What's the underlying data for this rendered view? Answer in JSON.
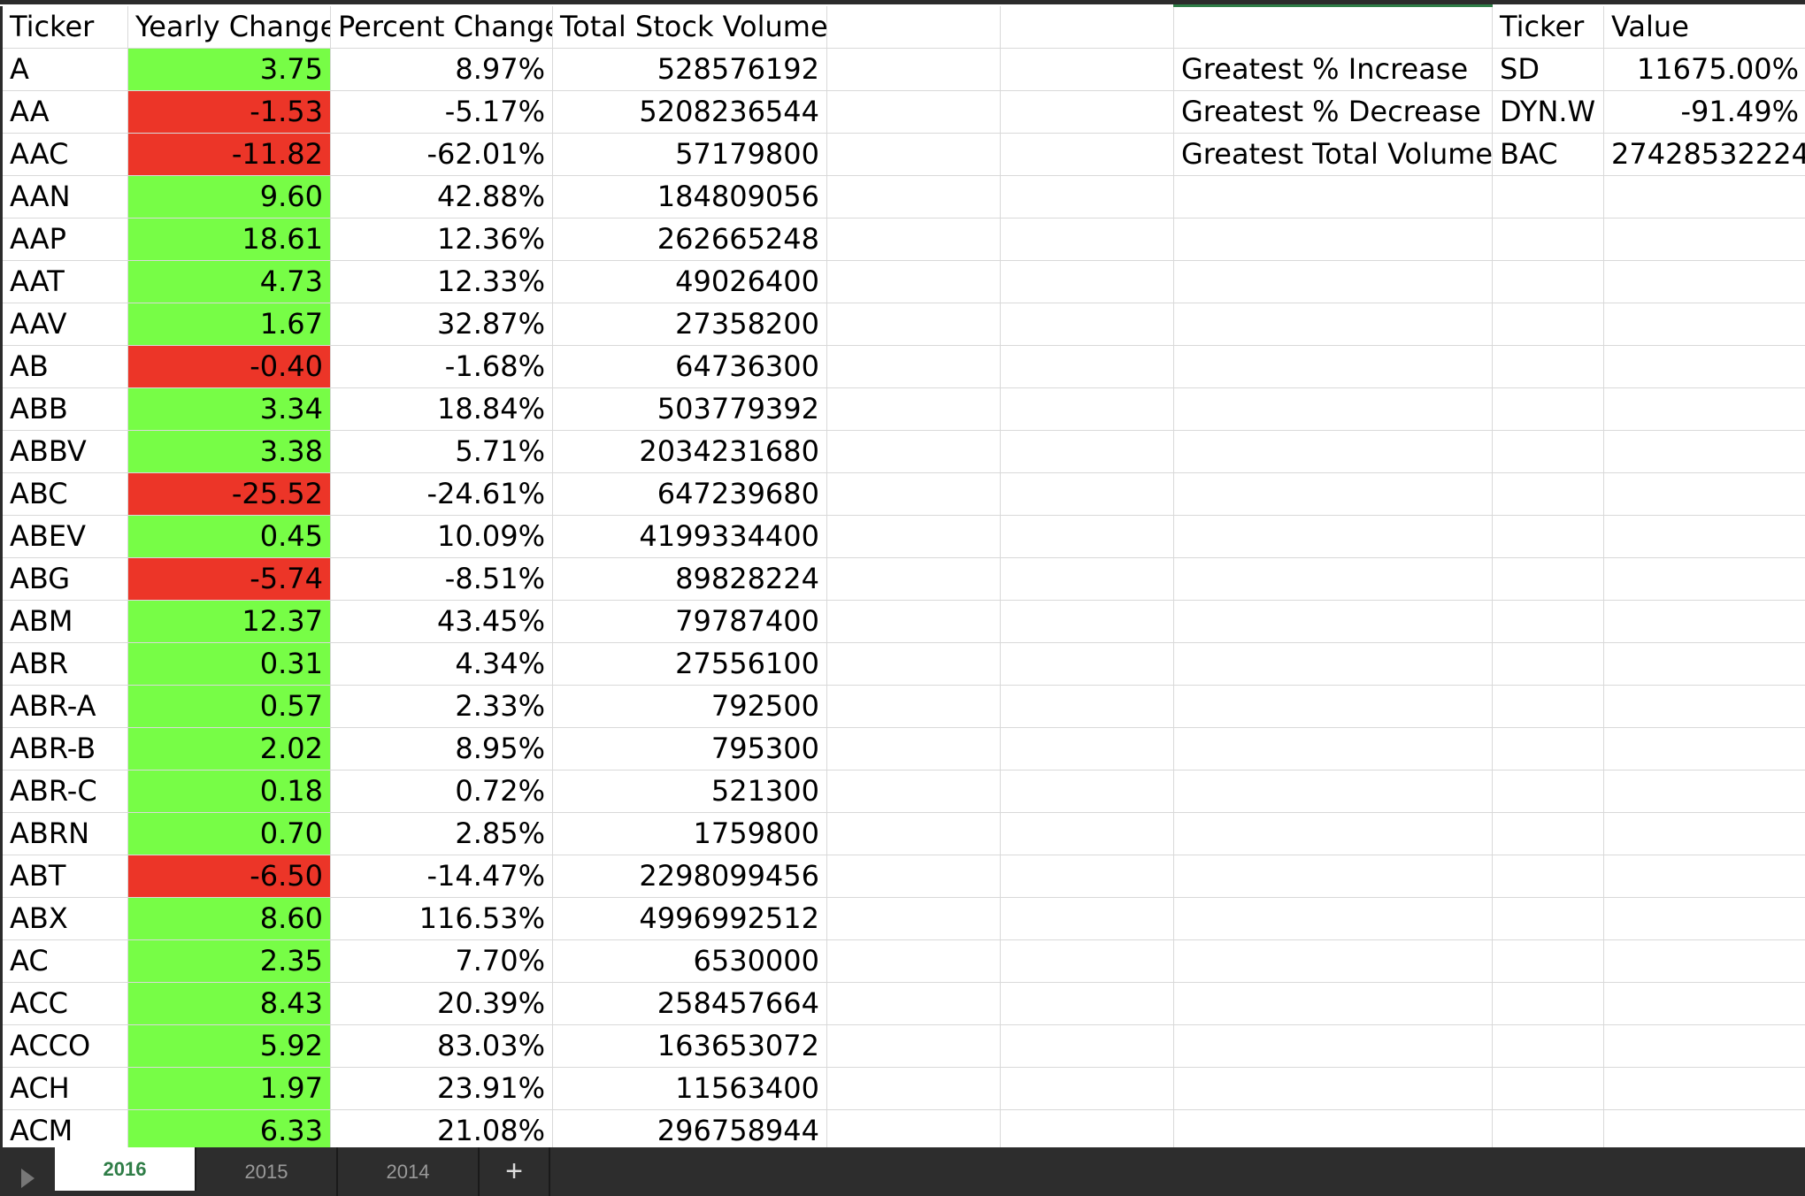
{
  "headers": [
    "Ticker",
    "Yearly Change",
    "Percent Change",
    "Total Stock Volume"
  ],
  "rows": [
    {
      "ticker": "A",
      "change": "3.75",
      "percent": "8.97%",
      "volume": "528576192",
      "dir": "pos"
    },
    {
      "ticker": "AA",
      "change": "-1.53",
      "percent": "-5.17%",
      "volume": "5208236544",
      "dir": "neg"
    },
    {
      "ticker": "AAC",
      "change": "-11.82",
      "percent": "-62.01%",
      "volume": "57179800",
      "dir": "neg"
    },
    {
      "ticker": "AAN",
      "change": "9.60",
      "percent": "42.88%",
      "volume": "184809056",
      "dir": "pos"
    },
    {
      "ticker": "AAP",
      "change": "18.61",
      "percent": "12.36%",
      "volume": "262665248",
      "dir": "pos"
    },
    {
      "ticker": "AAT",
      "change": "4.73",
      "percent": "12.33%",
      "volume": "49026400",
      "dir": "pos"
    },
    {
      "ticker": "AAV",
      "change": "1.67",
      "percent": "32.87%",
      "volume": "27358200",
      "dir": "pos"
    },
    {
      "ticker": "AB",
      "change": "-0.40",
      "percent": "-1.68%",
      "volume": "64736300",
      "dir": "neg"
    },
    {
      "ticker": "ABB",
      "change": "3.34",
      "percent": "18.84%",
      "volume": "503779392",
      "dir": "pos"
    },
    {
      "ticker": "ABBV",
      "change": "3.38",
      "percent": "5.71%",
      "volume": "2034231680",
      "dir": "pos"
    },
    {
      "ticker": "ABC",
      "change": "-25.52",
      "percent": "-24.61%",
      "volume": "647239680",
      "dir": "neg"
    },
    {
      "ticker": "ABEV",
      "change": "0.45",
      "percent": "10.09%",
      "volume": "4199334400",
      "dir": "pos"
    },
    {
      "ticker": "ABG",
      "change": "-5.74",
      "percent": "-8.51%",
      "volume": "89828224",
      "dir": "neg"
    },
    {
      "ticker": "ABM",
      "change": "12.37",
      "percent": "43.45%",
      "volume": "79787400",
      "dir": "pos"
    },
    {
      "ticker": "ABR",
      "change": "0.31",
      "percent": "4.34%",
      "volume": "27556100",
      "dir": "pos"
    },
    {
      "ticker": "ABR-A",
      "change": "0.57",
      "percent": "2.33%",
      "volume": "792500",
      "dir": "pos"
    },
    {
      "ticker": "ABR-B",
      "change": "2.02",
      "percent": "8.95%",
      "volume": "795300",
      "dir": "pos"
    },
    {
      "ticker": "ABR-C",
      "change": "0.18",
      "percent": "0.72%",
      "volume": "521300",
      "dir": "pos"
    },
    {
      "ticker": "ABRN",
      "change": "0.70",
      "percent": "2.85%",
      "volume": "1759800",
      "dir": "pos"
    },
    {
      "ticker": "ABT",
      "change": "-6.50",
      "percent": "-14.47%",
      "volume": "2298099456",
      "dir": "neg"
    },
    {
      "ticker": "ABX",
      "change": "8.60",
      "percent": "116.53%",
      "volume": "4996992512",
      "dir": "pos"
    },
    {
      "ticker": "AC",
      "change": "2.35",
      "percent": "7.70%",
      "volume": "6530000",
      "dir": "pos"
    },
    {
      "ticker": "ACC",
      "change": "8.43",
      "percent": "20.39%",
      "volume": "258457664",
      "dir": "pos"
    },
    {
      "ticker": "ACCO",
      "change": "5.92",
      "percent": "83.03%",
      "volume": "163653072",
      "dir": "pos"
    },
    {
      "ticker": "ACH",
      "change": "1.97",
      "percent": "23.91%",
      "volume": "11563400",
      "dir": "pos"
    },
    {
      "ticker": "ACM",
      "change": "6.33",
      "percent": "21.08%",
      "volume": "296758944",
      "dir": "pos"
    }
  ],
  "summary": {
    "headers": [
      "Ticker",
      "Value"
    ],
    "rows": [
      {
        "label": "Greatest % Increase",
        "ticker": "SD",
        "value": "11675.00%"
      },
      {
        "label": "Greatest % Decrease",
        "ticker": "DYN.W",
        "value": "-91.49%"
      },
      {
        "label": "Greatest Total Volume",
        "ticker": "BAC",
        "value": "27428532224"
      }
    ]
  },
  "tabs": [
    {
      "label": "2016",
      "active": true
    },
    {
      "label": "2015",
      "active": false
    },
    {
      "label": "2014",
      "active": false
    }
  ],
  "add_sheet_label": "+",
  "colors": {
    "positive_fill": "#77fd46",
    "negative_fill": "#ec3528",
    "active_tab_text": "#2f7d47",
    "tab_bar": "#2d2d2d"
  }
}
